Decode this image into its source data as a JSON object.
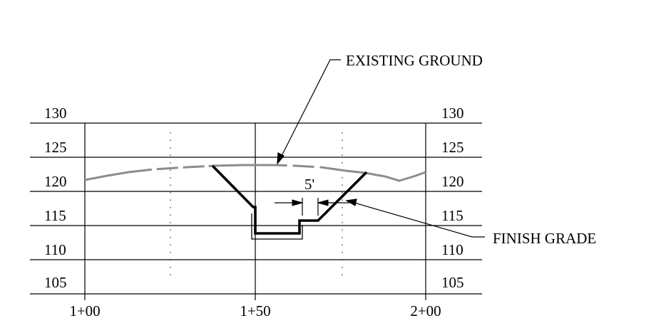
{
  "labels": {
    "existing_ground": "EXISTING GROUND",
    "finish_grade": "FINISH GRADE",
    "dimension": "5'"
  },
  "elevation_ticks_left": [
    "130",
    "125",
    "120",
    "115",
    "110",
    "105"
  ],
  "elevation_ticks_right": [
    "130",
    "125",
    "120",
    "115",
    "110",
    "105"
  ],
  "station_ticks": [
    "1+00",
    "1+50",
    "2+00"
  ],
  "colors": {
    "existing_ground": "#8c8c8c",
    "finish_grade": "#000000",
    "grid": "#000000"
  },
  "chart_data": {
    "type": "line",
    "x_ticks": [
      "1+00",
      "1+50",
      "2+00"
    ],
    "y_ticks": [
      130,
      125,
      120,
      115,
      110,
      105
    ],
    "grid": true,
    "series": [
      {
        "name": "EXISTING GROUND",
        "line_style": "dashed",
        "points": [
          {
            "x": "1+00",
            "y": 120.5
          },
          {
            "x": "1+20",
            "y": 122.0
          },
          {
            "x": "1+38",
            "y": 122.6
          },
          {
            "x": "1+50",
            "y": 122.5
          },
          {
            "x": "1+65",
            "y": 122.3
          },
          {
            "x": "1+83",
            "y": 121.0
          },
          {
            "x": "1+92",
            "y": 120.2
          },
          {
            "x": "2+00",
            "y": 121.0
          }
        ]
      },
      {
        "name": "FINISH GRADE",
        "line_style": "solid",
        "points": [
          {
            "x": "1+38",
            "y": 122.5
          },
          {
            "x": "1+50",
            "y": 116.5
          },
          {
            "x": "1+50",
            "y": 113.0
          },
          {
            "x": "1+64",
            "y": 113.0
          },
          {
            "x": "1+64",
            "y": 114.8
          },
          {
            "x": "1+69",
            "y": 114.8
          },
          {
            "x": "1+82",
            "y": 121.8
          }
        ]
      }
    ],
    "annotations": [
      {
        "text": "EXISTING GROUND",
        "target": "existing ground line"
      },
      {
        "text": "FINISH GRADE",
        "target": "finish grade line"
      },
      {
        "text": "5'",
        "target": "bench width"
      }
    ]
  }
}
